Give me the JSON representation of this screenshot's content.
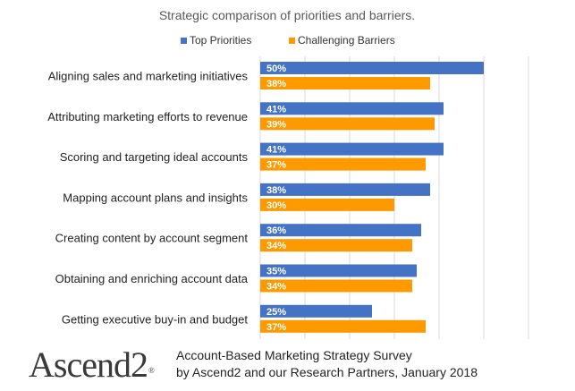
{
  "chart_data": {
    "type": "bar",
    "orientation": "horizontal",
    "title": "Strategic comparison of priorities and barriers.",
    "categories": [
      "Aligning sales and marketing initiatives",
      "Attributing marketing efforts to revenue",
      "Scoring and targeting ideal accounts",
      "Mapping account plans and insights",
      "Creating content by account segment",
      "Obtaining and enriching account data",
      "Getting executive buy-in and budget"
    ],
    "series": [
      {
        "name": "Top Priorities",
        "color": "#4472C4",
        "values": [
          50,
          41,
          41,
          38,
          36,
          35,
          25
        ],
        "labels": [
          "50%",
          "41%",
          "41%",
          "38%",
          "36%",
          "35%",
          "25%"
        ]
      },
      {
        "name": "Challenging Barriers",
        "color": "#FF9900",
        "values": [
          38,
          39,
          37,
          30,
          34,
          34,
          37
        ],
        "labels": [
          "38%",
          "39%",
          "37%",
          "30%",
          "34%",
          "34%",
          "37%"
        ]
      }
    ],
    "xlim": [
      0,
      60
    ],
    "gridlines": true,
    "legend_position": "top",
    "data_labels": "inside-base"
  },
  "footer": {
    "logo": "Ascend2",
    "logo_mark": "®",
    "line1": "Account-Based Marketing Strategy Survey",
    "line2": "by Ascend2 and our Research Partners, January 2018"
  }
}
